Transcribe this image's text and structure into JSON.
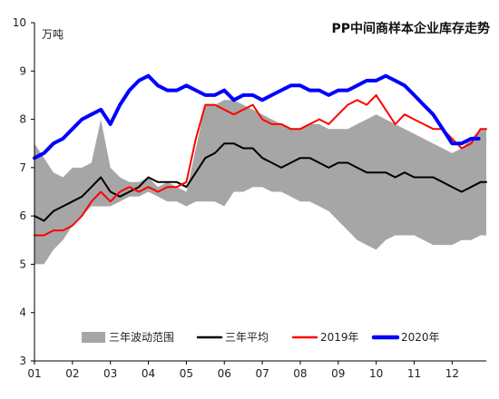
{
  "chart_data": {
    "type": "line",
    "title": "PP中间商样本企业库存走势",
    "unit": "万吨",
    "ylim": [
      3,
      10
    ],
    "yticks": [
      "3",
      "4",
      "5",
      "6",
      "7",
      "8",
      "9",
      "10"
    ],
    "xlim": [
      1,
      12.9
    ],
    "xticks": [
      "01",
      "02",
      "03",
      "04",
      "05",
      "06",
      "07",
      "08",
      "09",
      "10",
      "11",
      "12"
    ],
    "grid": false,
    "legend_position": "bottom",
    "band": {
      "name": "三年波动范围",
      "color": "#a6a6a6",
      "x": [
        1.0,
        1.25,
        1.5,
        1.75,
        2.0,
        2.25,
        2.5,
        2.75,
        3.0,
        3.25,
        3.5,
        3.75,
        4.0,
        4.25,
        4.5,
        4.75,
        5.0,
        5.25,
        5.5,
        5.75,
        6.0,
        6.25,
        6.5,
        6.75,
        7.0,
        7.25,
        7.5,
        7.75,
        8.0,
        8.25,
        8.5,
        8.75,
        9.0,
        9.25,
        9.5,
        9.75,
        10.0,
        10.25,
        10.5,
        10.75,
        11.0,
        11.25,
        11.5,
        11.75,
        12.0,
        12.25,
        12.5,
        12.75,
        12.9
      ],
      "upper": [
        7.5,
        7.2,
        6.9,
        6.8,
        7.0,
        7.0,
        7.1,
        8.0,
        7.0,
        6.8,
        6.7,
        6.7,
        6.8,
        6.6,
        6.7,
        6.6,
        6.5,
        7.4,
        8.3,
        8.3,
        8.4,
        8.4,
        8.3,
        8.2,
        8.1,
        8.0,
        7.9,
        7.8,
        7.8,
        7.9,
        7.9,
        7.8,
        7.8,
        7.8,
        7.9,
        8.0,
        8.1,
        8.0,
        7.9,
        7.8,
        7.7,
        7.6,
        7.5,
        7.4,
        7.3,
        7.4,
        7.6,
        7.8,
        7.8
      ],
      "lower": [
        5.0,
        5.0,
        5.3,
        5.5,
        5.8,
        6.0,
        6.2,
        6.2,
        6.2,
        6.3,
        6.4,
        6.4,
        6.5,
        6.4,
        6.3,
        6.3,
        6.2,
        6.3,
        6.3,
        6.3,
        6.2,
        6.5,
        6.5,
        6.6,
        6.6,
        6.5,
        6.5,
        6.4,
        6.3,
        6.3,
        6.2,
        6.1,
        5.9,
        5.7,
        5.5,
        5.4,
        5.3,
        5.5,
        5.6,
        5.6,
        5.6,
        5.5,
        5.4,
        5.4,
        5.4,
        5.5,
        5.5,
        5.6,
        5.6
      ]
    },
    "series": [
      {
        "name": "三年平均",
        "color": "#000000",
        "width": 2,
        "x": [
          1.0,
          1.25,
          1.5,
          1.75,
          2.0,
          2.25,
          2.5,
          2.75,
          3.0,
          3.25,
          3.5,
          3.75,
          4.0,
          4.25,
          4.5,
          4.75,
          5.0,
          5.25,
          5.5,
          5.75,
          6.0,
          6.25,
          6.5,
          6.75,
          7.0,
          7.25,
          7.5,
          7.75,
          8.0,
          8.25,
          8.5,
          8.75,
          9.0,
          9.25,
          9.5,
          9.75,
          10.0,
          10.25,
          10.5,
          10.75,
          11.0,
          11.25,
          11.5,
          11.75,
          12.0,
          12.25,
          12.5,
          12.75,
          12.9
        ],
        "y": [
          6.0,
          5.9,
          6.1,
          6.2,
          6.3,
          6.4,
          6.6,
          6.8,
          6.5,
          6.4,
          6.5,
          6.6,
          6.8,
          6.7,
          6.7,
          6.7,
          6.6,
          6.9,
          7.2,
          7.3,
          7.5,
          7.5,
          7.4,
          7.4,
          7.2,
          7.1,
          7.0,
          7.1,
          7.2,
          7.2,
          7.1,
          7.0,
          7.1,
          7.1,
          7.0,
          6.9,
          6.9,
          6.9,
          6.8,
          6.9,
          6.8,
          6.8,
          6.8,
          6.7,
          6.6,
          6.5,
          6.6,
          6.7,
          6.7
        ]
      },
      {
        "name": "2019年",
        "color": "#ff0000",
        "width": 2,
        "x": [
          1.0,
          1.25,
          1.5,
          1.75,
          2.0,
          2.25,
          2.5,
          2.75,
          3.0,
          3.25,
          3.5,
          3.75,
          4.0,
          4.25,
          4.5,
          4.75,
          5.0,
          5.25,
          5.5,
          5.75,
          6.0,
          6.25,
          6.5,
          6.75,
          7.0,
          7.25,
          7.5,
          7.75,
          8.0,
          8.25,
          8.5,
          8.75,
          9.0,
          9.25,
          9.5,
          9.75,
          10.0,
          10.25,
          10.5,
          10.75,
          11.0,
          11.25,
          11.5,
          11.75,
          12.0,
          12.25,
          12.5,
          12.75,
          12.9
        ],
        "y": [
          5.6,
          5.6,
          5.7,
          5.7,
          5.8,
          6.0,
          6.3,
          6.5,
          6.3,
          6.5,
          6.6,
          6.5,
          6.6,
          6.5,
          6.6,
          6.6,
          6.7,
          7.6,
          8.3,
          8.3,
          8.2,
          8.1,
          8.2,
          8.3,
          8.0,
          7.9,
          7.9,
          7.8,
          7.8,
          7.9,
          8.0,
          7.9,
          8.1,
          8.3,
          8.4,
          8.3,
          8.5,
          8.2,
          7.9,
          8.1,
          8.0,
          7.9,
          7.8,
          7.8,
          7.6,
          7.4,
          7.5,
          7.8,
          7.8
        ]
      },
      {
        "name": "2020年",
        "color": "#0000ff",
        "width": 4,
        "x": [
          1.0,
          1.25,
          1.5,
          1.75,
          2.0,
          2.25,
          2.5,
          2.75,
          3.0,
          3.25,
          3.5,
          3.75,
          4.0,
          4.25,
          4.5,
          4.75,
          5.0,
          5.25,
          5.5,
          5.75,
          6.0,
          6.25,
          6.5,
          6.75,
          7.0,
          7.25,
          7.5,
          7.75,
          8.0,
          8.25,
          8.5,
          8.75,
          9.0,
          9.25,
          9.5,
          9.75,
          10.0,
          10.25,
          10.5,
          10.75,
          11.0,
          11.25,
          11.5,
          11.75,
          12.0,
          12.25,
          12.5,
          12.7
        ],
        "y": [
          7.2,
          7.3,
          7.5,
          7.6,
          7.8,
          8.0,
          8.1,
          8.2,
          7.9,
          8.3,
          8.6,
          8.8,
          8.9,
          8.7,
          8.6,
          8.6,
          8.7,
          8.6,
          8.5,
          8.5,
          8.6,
          8.4,
          8.5,
          8.5,
          8.4,
          8.5,
          8.6,
          8.7,
          8.7,
          8.6,
          8.6,
          8.5,
          8.6,
          8.6,
          8.7,
          8.8,
          8.8,
          8.9,
          8.8,
          8.7,
          8.5,
          8.3,
          8.1,
          7.8,
          7.5,
          7.5,
          7.6,
          7.6
        ]
      }
    ]
  }
}
